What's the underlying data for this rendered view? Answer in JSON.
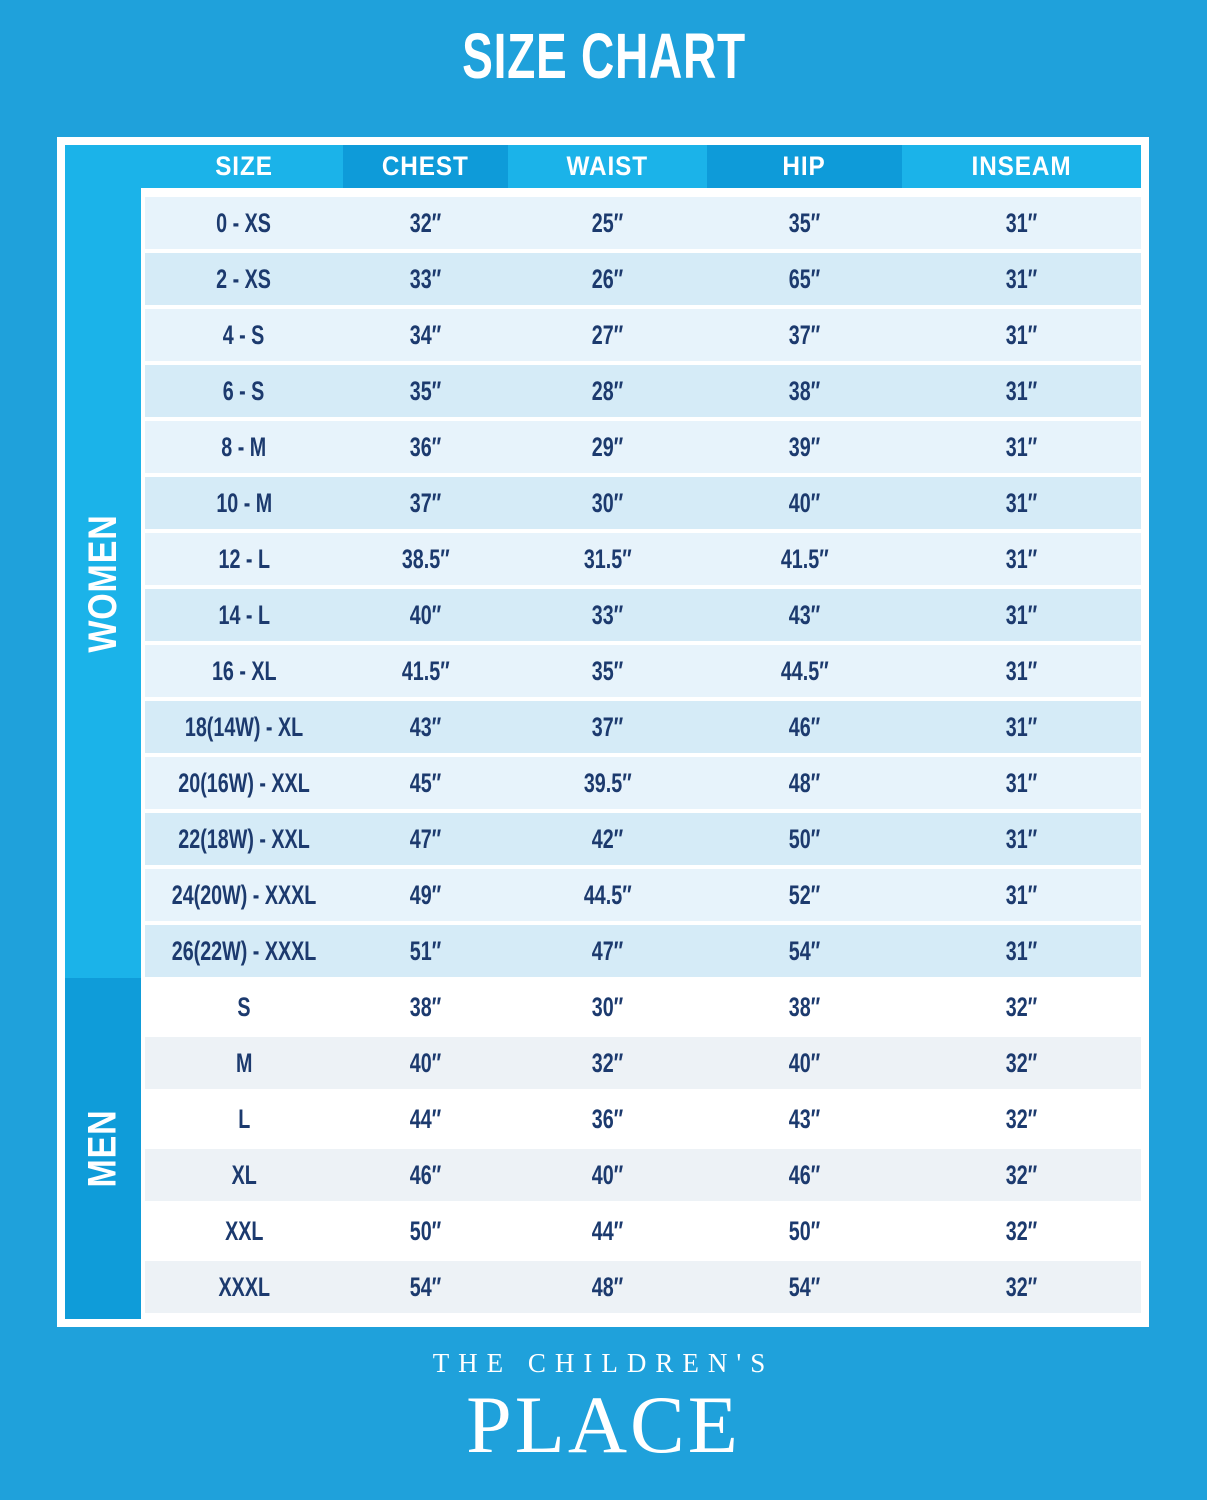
{
  "page": {
    "title": "SIZE CHART"
  },
  "chart_data": {
    "type": "table",
    "title": "SIZE CHART",
    "columns": [
      "SIZE",
      "CHEST",
      "WAIST",
      "HIP",
      "INSEAM"
    ],
    "sections": [
      {
        "label": "WOMEN",
        "rows": [
          [
            "0 - XS",
            "32″",
            "25″",
            "35″",
            "31″"
          ],
          [
            "2 - XS",
            "33″",
            "26″",
            "65″",
            "31″"
          ],
          [
            "4 - S",
            "34″",
            "27″",
            "37″",
            "31″"
          ],
          [
            "6 - S",
            "35″",
            "28″",
            "38″",
            "31″"
          ],
          [
            "8 - M",
            "36″",
            "29″",
            "39″",
            "31″"
          ],
          [
            "10 - M",
            "37″",
            "30″",
            "40″",
            "31″"
          ],
          [
            "12 - L",
            "38.5″",
            "31.5″",
            "41.5″",
            "31″"
          ],
          [
            "14 - L",
            "40″",
            "33″",
            "43″",
            "31″"
          ],
          [
            "16 - XL",
            "41.5″",
            "35″",
            "44.5″",
            "31″"
          ],
          [
            "18(14W) - XL",
            "43″",
            "37″",
            "46″",
            "31″"
          ],
          [
            "20(16W) - XXL",
            "45″",
            "39.5″",
            "48″",
            "31″"
          ],
          [
            "22(18W) - XXL",
            "47″",
            "42″",
            "50″",
            "31″"
          ],
          [
            "24(20W) - XXXL",
            "49″",
            "44.5″",
            "52″",
            "31″"
          ],
          [
            "26(22W) - XXXL",
            "51″",
            "47″",
            "54″",
            "31″"
          ]
        ]
      },
      {
        "label": "MEN",
        "rows": [
          [
            "S",
            "38″",
            "30″",
            "38″",
            "32″"
          ],
          [
            "M",
            "40″",
            "32″",
            "40″",
            "32″"
          ],
          [
            "L",
            "44″",
            "36″",
            "43″",
            "32″"
          ],
          [
            "XL",
            "46″",
            "40″",
            "46″",
            "32″"
          ],
          [
            "XXL",
            "50″",
            "44″",
            "50″",
            "32″"
          ],
          [
            "XXXL",
            "54″",
            "48″",
            "54″",
            "32″"
          ]
        ]
      }
    ]
  },
  "footer": {
    "brand_line1": "THE CHILDREN'S",
    "brand_line2": "PLACE"
  },
  "colors": {
    "page_background": "#1FA1DB",
    "header_light": "#1BB3E9",
    "header_dark": "#0E9BD9",
    "women_strip": "#1BB3E9",
    "men_strip": "#0F9CD9",
    "women_row_odd": "#E7F3FB",
    "women_row_even": "#D5EBF7",
    "men_row_odd": "#FFFFFF",
    "men_row_even": "#EDF2F6",
    "cell_text": "#1C3A6E"
  }
}
